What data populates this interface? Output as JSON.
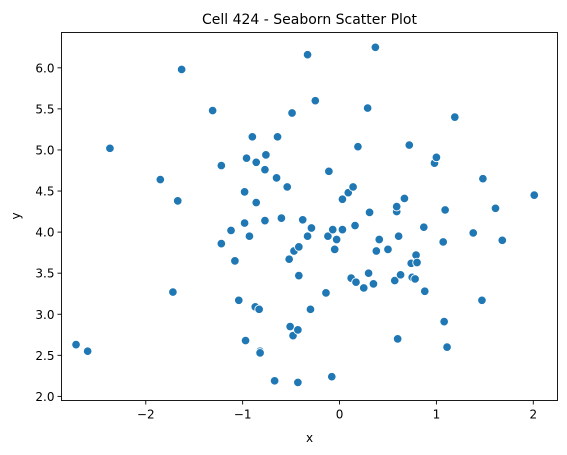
{
  "chart_data": {
    "type": "scatter",
    "title": "Cell 424 - Seaborn Scatter Plot",
    "xlabel": "x",
    "ylabel": "y",
    "xlim": [
      -2.87,
      2.25
    ],
    "ylim": [
      1.95,
      6.43
    ],
    "xticks": [
      -2,
      -1,
      0,
      1,
      2
    ],
    "xtick_labels": [
      "−2",
      "−1",
      "0",
      "1",
      "2"
    ],
    "yticks": [
      2.0,
      2.5,
      3.0,
      3.5,
      4.0,
      4.5,
      5.0,
      5.5,
      6.0
    ],
    "ytick_labels": [
      "2.0",
      "2.5",
      "3.0",
      "3.5",
      "4.0",
      "4.5",
      "5.0",
      "5.5",
      "6.0"
    ],
    "grid": false,
    "legend": null,
    "color": "#1f77b4",
    "series": [
      {
        "points": [
          [
            -2.72,
            2.63
          ],
          [
            -2.6,
            2.55
          ],
          [
            -2.37,
            5.02
          ],
          [
            -1.85,
            4.64
          ],
          [
            -1.72,
            3.27
          ],
          [
            -1.67,
            4.38
          ],
          [
            -1.63,
            5.98
          ],
          [
            -1.31,
            5.48
          ],
          [
            -1.22,
            4.81
          ],
          [
            -1.22,
            3.86
          ],
          [
            -1.12,
            4.02
          ],
          [
            -1.08,
            3.65
          ],
          [
            -1.04,
            3.17
          ],
          [
            -0.98,
            4.11
          ],
          [
            -0.98,
            4.49
          ],
          [
            -0.97,
            2.68
          ],
          [
            -0.96,
            4.9
          ],
          [
            -0.93,
            3.95
          ],
          [
            -0.9,
            5.16
          ],
          [
            -0.87,
            3.09
          ],
          [
            -0.86,
            4.36
          ],
          [
            -0.86,
            4.85
          ],
          [
            -0.83,
            3.06
          ],
          [
            -0.82,
            2.55
          ],
          [
            -0.82,
            2.53
          ],
          [
            -0.77,
            4.76
          ],
          [
            -0.77,
            4.14
          ],
          [
            -0.76,
            4.94
          ],
          [
            -0.67,
            2.19
          ],
          [
            -0.65,
            4.66
          ],
          [
            -0.64,
            5.16
          ],
          [
            -0.6,
            4.17
          ],
          [
            -0.54,
            4.55
          ],
          [
            -0.52,
            3.67
          ],
          [
            -0.51,
            2.85
          ],
          [
            -0.49,
            5.45
          ],
          [
            -0.48,
            2.74
          ],
          [
            -0.47,
            3.77
          ],
          [
            -0.43,
            2.81
          ],
          [
            -0.43,
            2.17
          ],
          [
            -0.42,
            3.47
          ],
          [
            -0.42,
            3.82
          ],
          [
            -0.38,
            4.15
          ],
          [
            -0.33,
            6.16
          ],
          [
            -0.33,
            3.95
          ],
          [
            -0.3,
            3.06
          ],
          [
            -0.29,
            4.05
          ],
          [
            -0.25,
            5.6
          ],
          [
            -0.14,
            3.26
          ],
          [
            -0.12,
            3.95
          ],
          [
            -0.11,
            4.74
          ],
          [
            -0.08,
            2.24
          ],
          [
            -0.07,
            4.03
          ],
          [
            -0.05,
            3.79
          ],
          [
            -0.03,
            3.91
          ],
          [
            0.03,
            4.03
          ],
          [
            0.03,
            4.4
          ],
          [
            0.09,
            4.48
          ],
          [
            0.12,
            3.44
          ],
          [
            0.14,
            4.55
          ],
          [
            0.16,
            4.08
          ],
          [
            0.17,
            3.39
          ],
          [
            0.19,
            5.04
          ],
          [
            0.25,
            3.32
          ],
          [
            0.29,
            5.51
          ],
          [
            0.3,
            3.5
          ],
          [
            0.31,
            4.24
          ],
          [
            0.35,
            3.37
          ],
          [
            0.37,
            6.25
          ],
          [
            0.38,
            3.77
          ],
          [
            0.41,
            3.91
          ],
          [
            0.5,
            3.79
          ],
          [
            0.57,
            3.41
          ],
          [
            0.59,
            4.25
          ],
          [
            0.59,
            4.31
          ],
          [
            0.6,
            2.7
          ],
          [
            0.61,
            3.95
          ],
          [
            0.63,
            3.48
          ],
          [
            0.67,
            4.41
          ],
          [
            0.72,
            5.06
          ],
          [
            0.74,
            3.62
          ],
          [
            0.75,
            3.45
          ],
          [
            0.78,
            3.43
          ],
          [
            0.79,
            3.72
          ],
          [
            0.8,
            3.63
          ],
          [
            0.87,
            4.06
          ],
          [
            0.88,
            3.28
          ],
          [
            0.98,
            4.84
          ],
          [
            1.0,
            4.91
          ],
          [
            1.07,
            3.88
          ],
          [
            1.08,
            2.91
          ],
          [
            1.09,
            4.27
          ],
          [
            1.11,
            2.6
          ],
          [
            1.19,
            5.4
          ],
          [
            1.38,
            3.99
          ],
          [
            1.47,
            3.17
          ],
          [
            1.48,
            4.65
          ],
          [
            1.61,
            4.29
          ],
          [
            1.68,
            3.9
          ],
          [
            2.01,
            4.45
          ]
        ]
      }
    ]
  }
}
